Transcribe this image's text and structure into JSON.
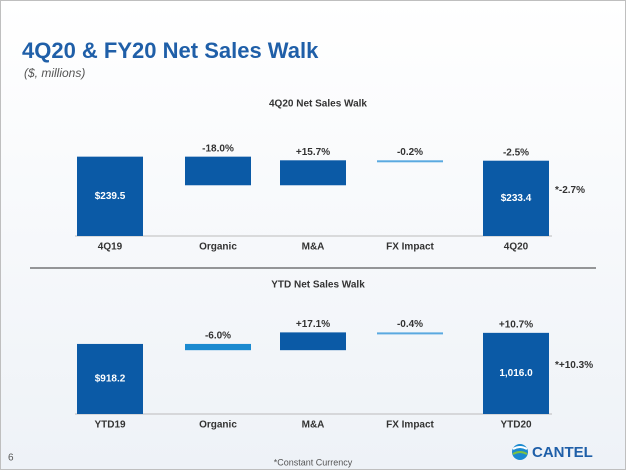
{
  "title": "4Q20 & FY20 Net Sales Walk",
  "subtitle": "($, millions)",
  "footnote": "*Constant Currency",
  "page_number": "6",
  "logo": "CANTEL",
  "chart_data": [
    {
      "type": "waterfall",
      "title": "4Q20 Net Sales Walk",
      "categories": [
        "4Q19",
        "Organic",
        "M&A",
        "FX Impact",
        "4Q20"
      ],
      "values": [
        239.5,
        -43.1,
        37.6,
        -0.5,
        233.4
      ],
      "value_labels": [
        "$239.5",
        "-18.0%",
        "+15.7%",
        "-0.2%",
        "$233.4"
      ],
      "colors": [
        "#0b5aa6",
        "#0b5aa6",
        "#0b5aa6",
        "#5aa9e0",
        "#0b5aa6"
      ],
      "total_change_label": "-2.5%",
      "annotation": "*-2.7%",
      "ylim": [
        120,
        245
      ]
    },
    {
      "type": "waterfall",
      "title": "YTD Net Sales Walk",
      "categories": [
        "YTD19",
        "Organic",
        "M&A",
        "FX Impact",
        "YTD20"
      ],
      "values": [
        918.2,
        -55.1,
        157.0,
        -3.7,
        1016.0
      ],
      "value_labels": [
        "$918.2",
        "-6.0%",
        "+17.1%",
        "-0.4%",
        "1,016.0"
      ],
      "colors": [
        "#0b5aa6",
        "#1b8ad0",
        "#0b5aa6",
        "#5aa9e0",
        "#0b5aa6"
      ],
      "total_change_label": "+10.7%",
      "annotation": "*+10.3%",
      "ylim": [
        300,
        1050
      ]
    }
  ]
}
